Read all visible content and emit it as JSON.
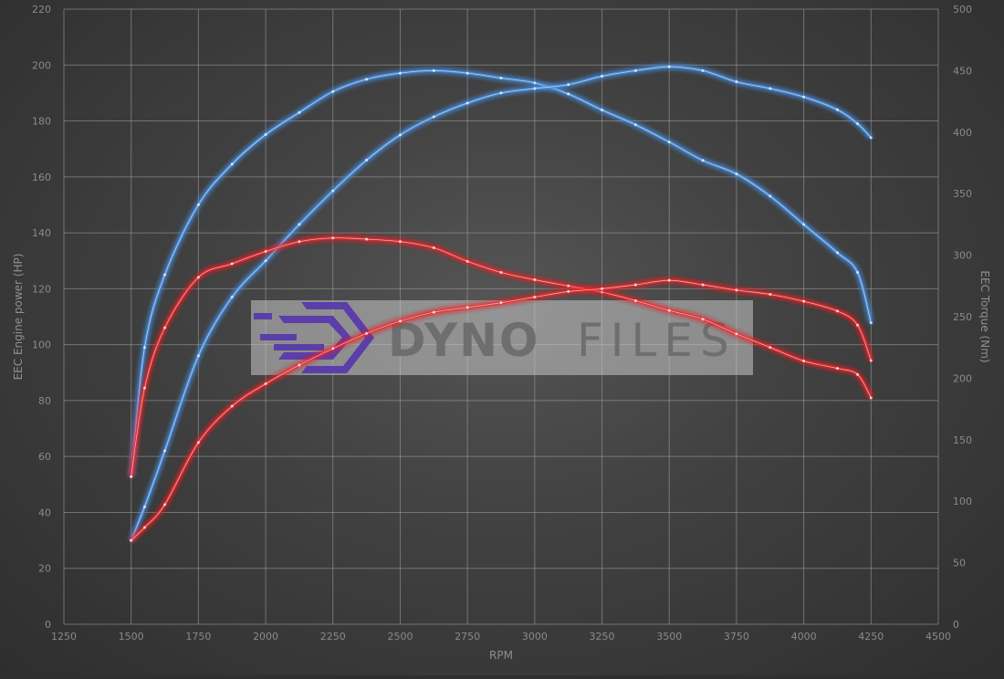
{
  "chart_data": {
    "type": "line",
    "xlabel": "RPM",
    "ylabel": "EEC Engine power (HP)",
    "y2label": "EEC Torque (Nm)",
    "xlim": [
      1250,
      4500
    ],
    "ylim": [
      0,
      220
    ],
    "y2lim": [
      0,
      500
    ],
    "xticks": [
      1250,
      1500,
      1750,
      2000,
      2250,
      2500,
      2750,
      3000,
      3250,
      3500,
      3750,
      4000,
      4250,
      4500
    ],
    "yticks": [
      0,
      20,
      40,
      60,
      80,
      100,
      120,
      140,
      160,
      180,
      200,
      220
    ],
    "y2ticks": [
      0,
      50,
      100,
      150,
      200,
      250,
      300,
      350,
      400,
      450,
      500
    ],
    "grid": true,
    "x": [
      1500,
      1550,
      1625,
      1750,
      1875,
      2000,
      2125,
      2250,
      2375,
      2500,
      2625,
      2750,
      2875,
      3000,
      3125,
      3250,
      3375,
      3500,
      3625,
      3750,
      3875,
      4000,
      4125,
      4200,
      4250
    ],
    "series": [
      {
        "axis": "right",
        "color": "#4a90e2",
        "values": [
          120,
          225,
          284,
          341,
          374,
          398,
          416,
          433,
          443,
          448,
          450,
          448,
          444,
          440,
          431,
          418,
          406,
          392,
          377,
          366,
          348,
          325,
          302,
          286,
          245
        ]
      },
      {
        "axis": "left",
        "color": "#4a90e2",
        "values": [
          30,
          42,
          62,
          96,
          117,
          130,
          143,
          155,
          166,
          175,
          181.5,
          186.4,
          190,
          191.6,
          193,
          196,
          198,
          199.4,
          198,
          194,
          191.6,
          188.6,
          184,
          179,
          174
        ]
      },
      {
        "axis": "right",
        "color": "#e8282b",
        "values": [
          120,
          192,
          241,
          282,
          293,
          303,
          311,
          314,
          313,
          311,
          306,
          295,
          286,
          280,
          275,
          270,
          263,
          255,
          248,
          236,
          225,
          214,
          208,
          203,
          184
        ]
      },
      {
        "axis": "left",
        "color": "#e8282b",
        "values": [
          30,
          34.6,
          42.8,
          65,
          78,
          86,
          92.7,
          98.6,
          104,
          108.4,
          111.6,
          113.3,
          115,
          117,
          119,
          120,
          121.4,
          123,
          121.4,
          119.5,
          118,
          115.5,
          112,
          107,
          94.3
        ]
      }
    ]
  },
  "watermark": {
    "text_bold": "DYNO",
    "text_light": "FILES",
    "color": "#5b3ea8"
  }
}
